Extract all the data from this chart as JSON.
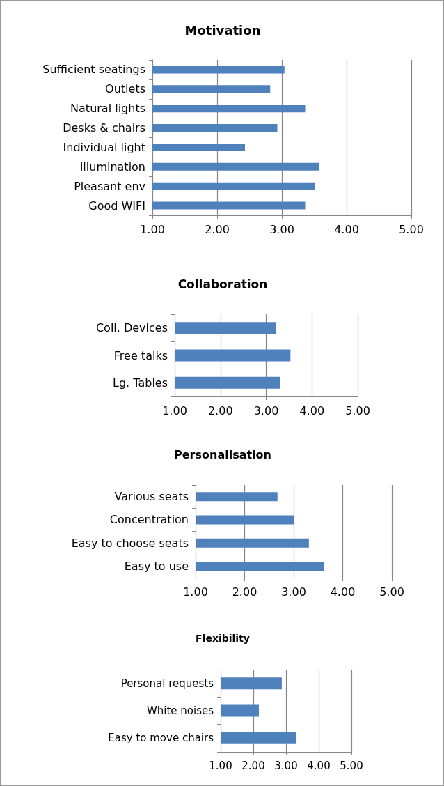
{
  "chart_data": [
    {
      "type": "bar",
      "orientation": "horizontal",
      "title": "Motivation",
      "categories": [
        "Sufficient seatings",
        "Outlets",
        "Natural lights",
        "Desks & chairs",
        "Individual light",
        "Illumination",
        "Pleasant env",
        "Good WIFI"
      ],
      "values": [
        3.04,
        2.82,
        3.36,
        2.93,
        2.43,
        3.58,
        3.51,
        3.36
      ],
      "color": "#4f81bd",
      "xlim": [
        1,
        5
      ],
      "xticks": [
        {
          "value": 1,
          "label": "1.00"
        },
        {
          "value": 2,
          "label": "2.00"
        },
        {
          "value": 3,
          "label": "3.00"
        },
        {
          "value": 4,
          "label": "4.00"
        },
        {
          "value": 5,
          "label": "5.00"
        }
      ],
      "grid": "x"
    },
    {
      "type": "bar",
      "orientation": "horizontal",
      "title": "Collaboration",
      "categories": [
        "Coll. Devices",
        "Free talks",
        "Lg. Tables"
      ],
      "values": [
        3.21,
        3.53,
        3.31
      ],
      "color": "#4f81bd",
      "xlim": [
        1,
        5
      ],
      "xticks": [
        {
          "value": 1,
          "label": "1.00"
        },
        {
          "value": 2,
          "label": "2.00"
        },
        {
          "value": 3,
          "label": "3.00"
        },
        {
          "value": 4,
          "label": "4.00"
        },
        {
          "value": 5,
          "label": "5.00"
        }
      ],
      "grid": "x"
    },
    {
      "type": "bar",
      "orientation": "horizontal",
      "title": "Personalisation",
      "categories": [
        "Various seats",
        "Concentration",
        "Easy to choose seats",
        "Easy to use"
      ],
      "values": [
        2.67,
        3.0,
        3.31,
        3.62
      ],
      "color": "#4f81bd",
      "xlim": [
        1,
        5
      ],
      "xticks": [
        {
          "value": 1,
          "label": "1.00"
        },
        {
          "value": 2,
          "label": "2.00"
        },
        {
          "value": 3,
          "label": "3.00"
        },
        {
          "value": 4,
          "label": "4.00"
        },
        {
          "value": 5,
          "label": "5.00"
        }
      ],
      "grid": "x"
    },
    {
      "type": "bar",
      "orientation": "horizontal",
      "title": "Flexibility",
      "categories": [
        "Personal requests",
        "White noises",
        "Easy to move chairs"
      ],
      "values": [
        2.87,
        2.17,
        3.32
      ],
      "color": "#4f81bd",
      "xlim": [
        1,
        5
      ],
      "xticks": [
        {
          "value": 1,
          "label": "1.00"
        },
        {
          "value": 2,
          "label": "2.00"
        },
        {
          "value": 3,
          "label": "3.00"
        },
        {
          "value": 4,
          "label": "4.00"
        },
        {
          "value": 5,
          "label": "5.00"
        }
      ],
      "grid": "x"
    }
  ]
}
